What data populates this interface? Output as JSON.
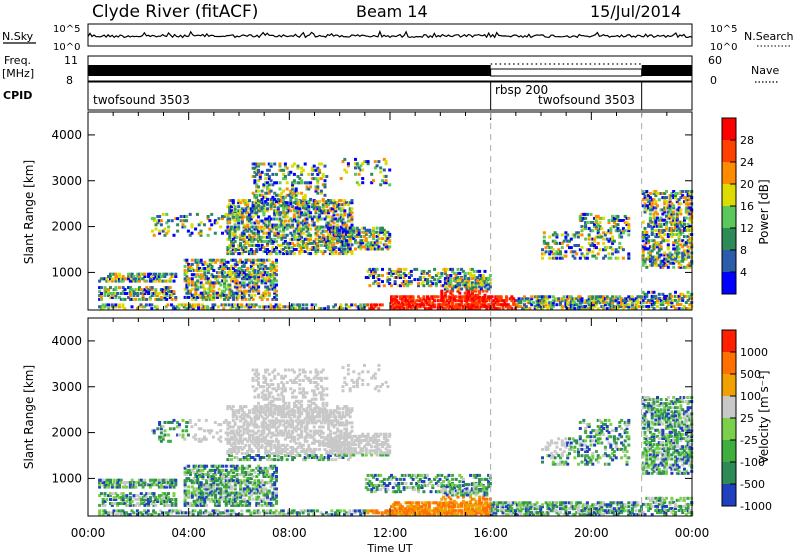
{
  "header": {
    "station": "Clyde River (fitACF)",
    "beam": "Beam 14",
    "date": "15/Jul/2014"
  },
  "top_panels": {
    "nsky_label": "N.Sky",
    "nsky_ticks": [
      "10^5",
      "10^0"
    ],
    "nsearch_label": "N.Search",
    "nsearch_ticks": [
      "10^5",
      "10^0"
    ],
    "freq_label_1": "Freq.",
    "freq_label_2": "[MHz]",
    "freq_ticks": [
      "11",
      "8"
    ],
    "nave_label": "Nave",
    "nave_ticks": [
      "60",
      "0"
    ],
    "cpid_label": "CPID",
    "cpid_segments": [
      {
        "name": "twofsound 3503",
        "start_h": 0,
        "end_h": 16
      },
      {
        "name": "rbsp 200",
        "start_h": 16,
        "end_h": 22
      },
      {
        "name": "twofsound 3503",
        "start_h": 22,
        "end_h": 24
      }
    ],
    "cpid_text_1": "twofsound 3503",
    "cpid_text_2": "rbsp 200",
    "cpid_text_3": "twofsound 3503"
  },
  "chart_data": [
    {
      "type": "heatmap",
      "title": "Power",
      "ylabel": "Slant Range [km]",
      "xlabel": "Time UT",
      "x_ticks": [
        "00:00",
        "04:00",
        "08:00",
        "12:00",
        "16:00",
        "20:00",
        "00:00"
      ],
      "xlim_hours": [
        0,
        24
      ],
      "y_ticks": [
        1000,
        2000,
        3000,
        4000
      ],
      "ylim": [
        180,
        4500
      ],
      "colorbar_label": "Power [dB]",
      "colorbar_ticks": [
        "28",
        "24",
        "20",
        "16",
        "12",
        "8",
        "4"
      ],
      "colors": [
        "#0000ff",
        "#2a5caa",
        "#2e8b57",
        "#5ac85a",
        "#dcdc00",
        "#ff8c00",
        "#ff4000",
        "#ff0000"
      ]
    },
    {
      "type": "heatmap",
      "title": "Velocity",
      "ylabel": "Slant Range [km]",
      "xlabel": "Time UT",
      "x_ticks": [
        "00:00",
        "04:00",
        "08:00",
        "12:00",
        "16:00",
        "20:00",
        "00:00"
      ],
      "xlim_hours": [
        0,
        24
      ],
      "y_ticks": [
        1000,
        2000,
        3000,
        4000
      ],
      "ylim": [
        180,
        4500
      ],
      "colorbar_label": "Velocity [m s⁻¹]",
      "colorbar_ticks": [
        "1000",
        "500",
        "100",
        "25",
        "-25",
        "-100",
        "-500",
        "-1000"
      ],
      "colors": [
        "#2040c0",
        "#2e8b57",
        "#3fae3f",
        "#7ad04a",
        "#c8c8c8",
        "#f0a000",
        "#ff7000",
        "#ff2000"
      ]
    }
  ],
  "axis": {
    "time_label": "Time UT",
    "range_label": "Slant Range [km]"
  },
  "colorbars": {
    "power_label": "Power [dB]",
    "velocity_label": "Velocity [m s⁻¹]"
  }
}
